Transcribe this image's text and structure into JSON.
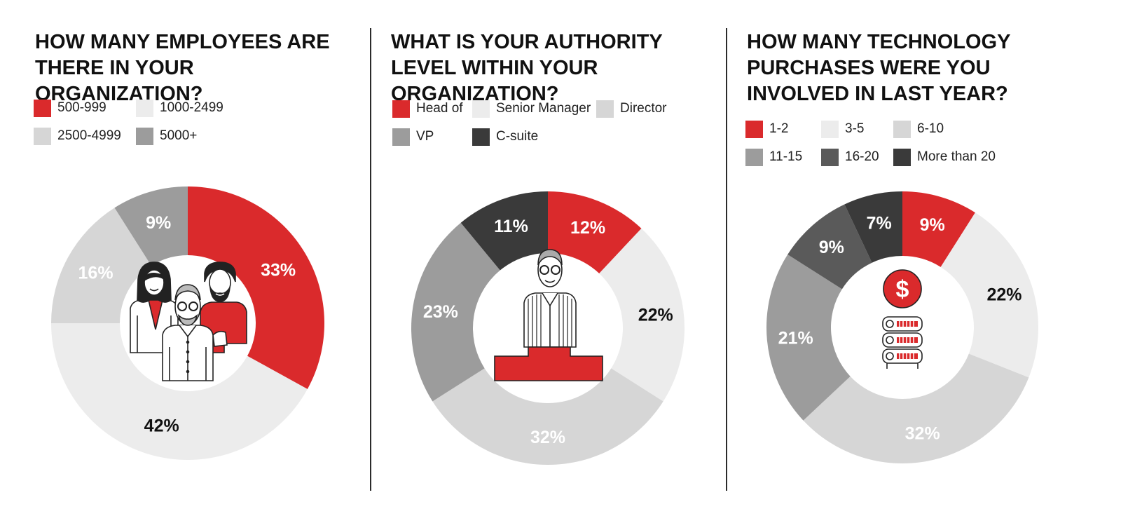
{
  "colors": {
    "red": "#da2a2c",
    "very_light": "#ececec",
    "light": "#d6d6d6",
    "mid": "#9c9c9c",
    "dark_mid": "#5a5a5a",
    "dark": "#3a3a3a"
  },
  "chart_data": [
    {
      "type": "pie",
      "title": "HOW MANY EMPLOYEES ARE THERE IN YOUR ORGANIZATION?",
      "icon": "people-group-icon",
      "slices": [
        {
          "label": "500-999",
          "value": 33,
          "display": "33%",
          "color": "#da2a2c",
          "label_color": "#ffffff"
        },
        {
          "label": "1000-2499",
          "value": 42,
          "display": "42%",
          "color": "#ececec",
          "label_color": "#111111"
        },
        {
          "label": "2500-4999",
          "value": 16,
          "display": "16%",
          "color": "#d6d6d6",
          "label_color": "#ffffff"
        },
        {
          "label": "5000+",
          "value": 9,
          "display": "9%",
          "color": "#9c9c9c",
          "label_color": "#ffffff"
        }
      ]
    },
    {
      "type": "pie",
      "title": "WHAT IS YOUR AUTHORITY LEVEL WITHIN YOUR ORGANIZATION?",
      "icon": "man-on-podium-icon",
      "slices": [
        {
          "label": "Head of",
          "value": 12,
          "display": "12%",
          "color": "#da2a2c",
          "label_color": "#ffffff"
        },
        {
          "label": "Senior Manager",
          "value": 22,
          "display": "22%",
          "color": "#ececec",
          "label_color": "#111111"
        },
        {
          "label": "Director",
          "value": 32,
          "display": "32%",
          "color": "#d6d6d6",
          "label_color": "#ffffff"
        },
        {
          "label": "VP",
          "value": 23,
          "display": "23%",
          "color": "#9c9c9c",
          "label_color": "#ffffff"
        },
        {
          "label": "C-suite",
          "value": 11,
          "display": "11%",
          "color": "#3a3a3a",
          "label_color": "#ffffff"
        }
      ]
    },
    {
      "type": "pie",
      "title": "HOW MANY TECHNOLOGY PURCHASES WERE YOU INVOLVED IN LAST YEAR?",
      "icon": "dollar-server-icon",
      "slices": [
        {
          "label": "1-2",
          "value": 9,
          "display": "9%",
          "color": "#da2a2c",
          "label_color": "#ffffff"
        },
        {
          "label": "3-5",
          "value": 22,
          "display": "22%",
          "color": "#ececec",
          "label_color": "#111111"
        },
        {
          "label": "6-10",
          "value": 32,
          "display": "32%",
          "color": "#d6d6d6",
          "label_color": "#ffffff"
        },
        {
          "label": "11-15",
          "value": 21,
          "display": "21%",
          "color": "#9c9c9c",
          "label_color": "#ffffff"
        },
        {
          "label": "16-20",
          "value": 9,
          "display": "9%",
          "color": "#5a5a5a",
          "label_color": "#ffffff"
        },
        {
          "label": "More than 20",
          "value": 7,
          "display": "7%",
          "color": "#3a3a3a",
          "label_color": "#ffffff"
        }
      ]
    }
  ]
}
